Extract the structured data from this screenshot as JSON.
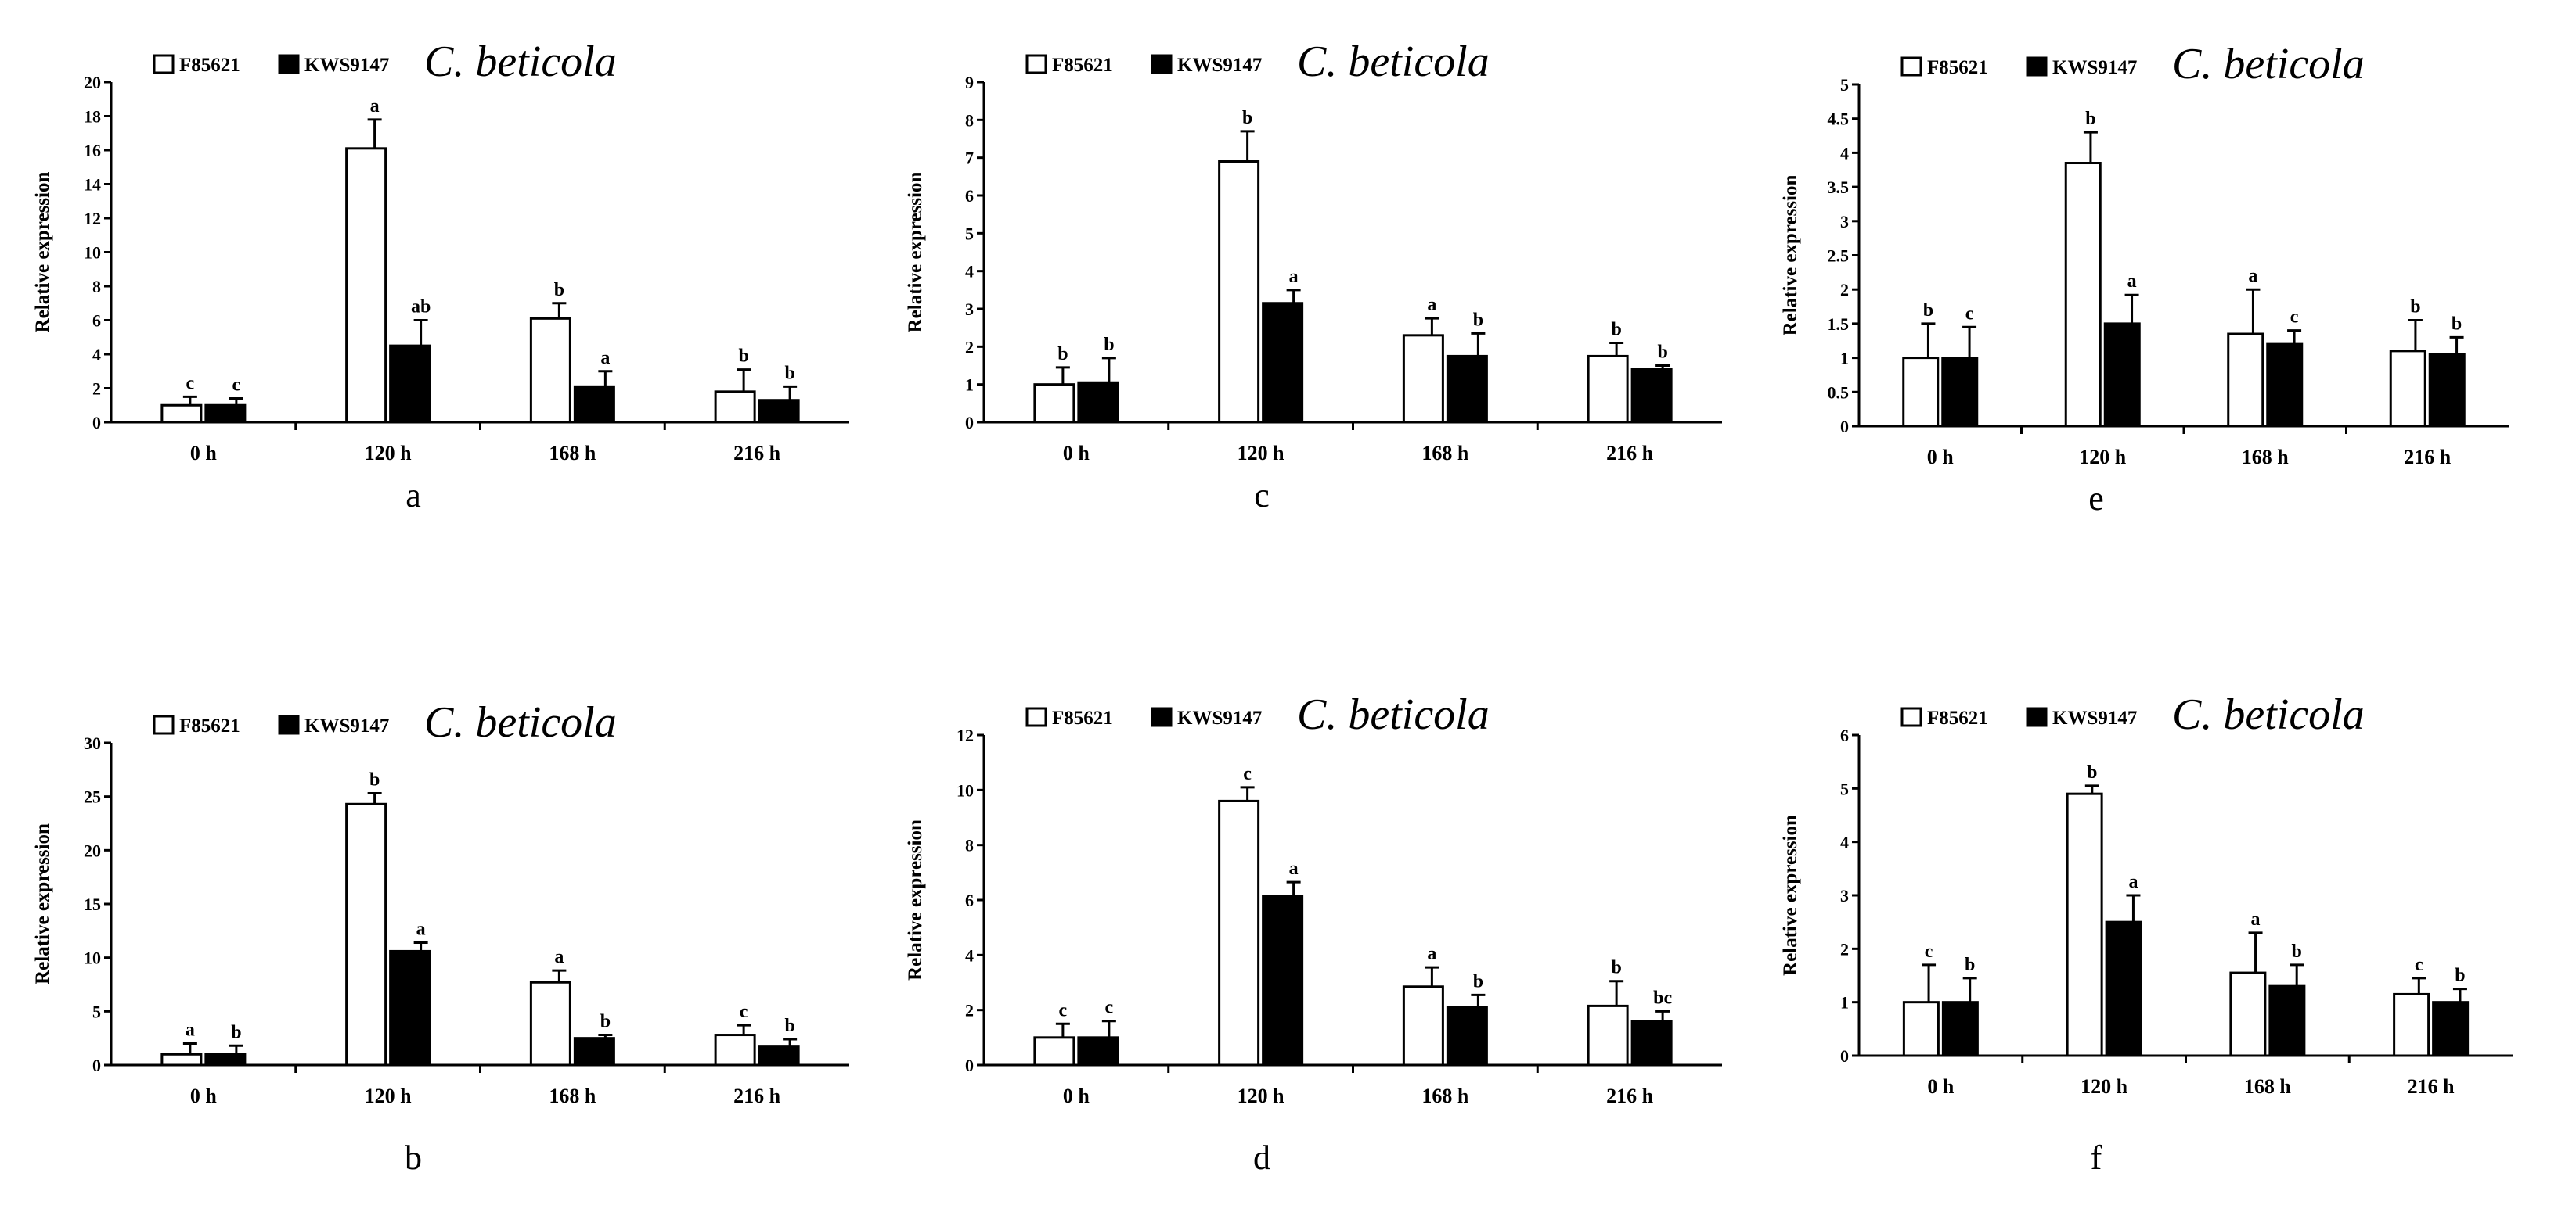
{
  "chart_data": [
    {
      "type": "bar",
      "panel_label": "a",
      "title": "C. beticola",
      "categories": [
        "0 h",
        "120 h",
        "168 h",
        "216 h"
      ],
      "xlabel": "",
      "ylabel": "Relative expression",
      "ylim": [
        0,
        20
      ],
      "yticks": [
        "0",
        "2",
        "4",
        "6",
        "8",
        "10",
        "12",
        "14",
        "16",
        "18",
        "20"
      ],
      "legend": "top-left",
      "series": [
        {
          "name": "F85621",
          "fill": "#ffffff",
          "values": [
            1.0,
            16.1,
            6.1,
            1.8
          ],
          "errors": [
            0.5,
            1.7,
            0.9,
            1.3
          ],
          "letters": [
            "c",
            "a",
            "b",
            "b"
          ]
        },
        {
          "name": "KWS9147",
          "fill": "#000000",
          "values": [
            1.0,
            4.5,
            2.1,
            1.3
          ],
          "errors": [
            0.4,
            1.5,
            0.9,
            0.8
          ],
          "letters": [
            "c",
            "ab",
            "a",
            "b"
          ]
        }
      ]
    },
    {
      "type": "bar",
      "panel_label": "b",
      "title": "C. beticola",
      "categories": [
        "0 h",
        "120 h",
        "168 h",
        "216 h"
      ],
      "xlabel": "",
      "ylabel": "Relative expression",
      "ylim": [
        0,
        30
      ],
      "yticks": [
        "0",
        "5",
        "10",
        "15",
        "20",
        "25",
        "30"
      ],
      "legend": "top-left",
      "series": [
        {
          "name": "F85621",
          "fill": "#ffffff",
          "values": [
            1.0,
            24.3,
            7.7,
            2.8
          ],
          "errors": [
            1.0,
            1.0,
            1.1,
            0.9
          ],
          "letters": [
            "a",
            "b",
            "a",
            "c"
          ]
        },
        {
          "name": "KWS9147",
          "fill": "#000000",
          "values": [
            1.0,
            10.6,
            2.5,
            1.7
          ],
          "errors": [
            0.8,
            0.8,
            0.3,
            0.7
          ],
          "letters": [
            "b",
            "a",
            "b",
            "b"
          ]
        }
      ]
    },
    {
      "type": "bar",
      "panel_label": "c",
      "title": "C. beticola",
      "categories": [
        "0 h",
        "120 h",
        "168 h",
        "216 h"
      ],
      "xlabel": "",
      "ylabel": "Relative expression",
      "ylim": [
        0,
        9
      ],
      "yticks": [
        "0",
        "1",
        "2",
        "3",
        "4",
        "5",
        "6",
        "7",
        "8",
        "9"
      ],
      "legend": "top-left",
      "series": [
        {
          "name": "F85621",
          "fill": "#ffffff",
          "values": [
            1.0,
            6.9,
            2.3,
            1.75
          ],
          "errors": [
            0.45,
            0.8,
            0.45,
            0.35
          ],
          "letters": [
            "b",
            "b",
            "a",
            "b"
          ]
        },
        {
          "name": "KWS9147",
          "fill": "#000000",
          "values": [
            1.05,
            3.15,
            1.75,
            1.4
          ],
          "errors": [
            0.65,
            0.35,
            0.6,
            0.1
          ],
          "letters": [
            "b",
            "a",
            "b",
            "b"
          ]
        }
      ]
    },
    {
      "type": "bar",
      "panel_label": "d",
      "title": "C. beticola",
      "categories": [
        "0 h",
        "120 h",
        "168 h",
        "216 h"
      ],
      "xlabel": "",
      "ylabel": "Relative expression",
      "ylim": [
        0,
        12
      ],
      "yticks": [
        "0",
        "2",
        "4",
        "6",
        "8",
        "10",
        "12"
      ],
      "legend": "top-left",
      "series": [
        {
          "name": "F85621",
          "fill": "#ffffff",
          "values": [
            1.0,
            9.6,
            2.85,
            2.15
          ],
          "errors": [
            0.5,
            0.5,
            0.7,
            0.9
          ],
          "letters": [
            "c",
            "c",
            "a",
            "b"
          ]
        },
        {
          "name": "KWS9147",
          "fill": "#000000",
          "values": [
            1.0,
            6.15,
            2.1,
            1.6
          ],
          "errors": [
            0.6,
            0.5,
            0.45,
            0.35
          ],
          "letters": [
            "c",
            "a",
            "b",
            "bc"
          ]
        }
      ]
    },
    {
      "type": "bar",
      "panel_label": "e",
      "title": "C. beticola",
      "categories": [
        "0 h",
        "120 h",
        "168 h",
        "216 h"
      ],
      "xlabel": "",
      "ylabel": "Relative expression",
      "ylim": [
        0,
        5
      ],
      "yticks": [
        "0",
        "0.5",
        "1",
        "1.5",
        "2",
        "2.5",
        "3",
        "3.5",
        "4",
        "4.5",
        "5"
      ],
      "legend": "top-left",
      "series": [
        {
          "name": "F85621",
          "fill": "#ffffff",
          "values": [
            1.0,
            3.85,
            1.35,
            1.1
          ],
          "errors": [
            0.5,
            0.45,
            0.65,
            0.45
          ],
          "letters": [
            "b",
            "b",
            "a",
            "b"
          ]
        },
        {
          "name": "KWS9147",
          "fill": "#000000",
          "values": [
            1.0,
            1.5,
            1.2,
            1.05
          ],
          "errors": [
            0.45,
            0.42,
            0.2,
            0.25
          ],
          "letters": [
            "c",
            "a",
            "c",
            "b"
          ]
        }
      ]
    },
    {
      "type": "bar",
      "panel_label": "f",
      "title": "C. beticola",
      "categories": [
        "0 h",
        "120 h",
        "168 h",
        "216 h"
      ],
      "xlabel": "",
      "ylabel": "Relative expression",
      "ylim": [
        0,
        6
      ],
      "yticks": [
        "0",
        "1",
        "2",
        "3",
        "4",
        "5",
        "6"
      ],
      "legend": "top-left",
      "series": [
        {
          "name": "F85621",
          "fill": "#ffffff",
          "values": [
            1.0,
            4.9,
            1.55,
            1.15
          ],
          "errors": [
            0.7,
            0.15,
            0.75,
            0.3
          ],
          "letters": [
            "c",
            "b",
            "a",
            "c"
          ]
        },
        {
          "name": "KWS9147",
          "fill": "#000000",
          "values": [
            1.0,
            2.5,
            1.3,
            1.0
          ],
          "errors": [
            0.45,
            0.5,
            0.4,
            0.25
          ],
          "letters": [
            "b",
            "a",
            "b",
            "b"
          ]
        }
      ]
    }
  ]
}
